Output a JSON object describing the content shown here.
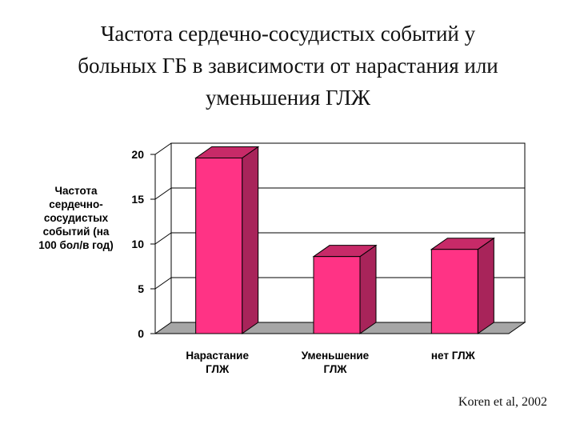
{
  "title_lines": [
    "Частота сердечно-сосудистых событий у",
    "больных ГБ в зависимости от нарастания или",
    "уменьшения ГЛЖ"
  ],
  "source": "Koren et al, 2002",
  "chart_data": {
    "type": "bar",
    "categories": [
      [
        "Нарастание",
        "ГЛЖ"
      ],
      [
        "Уменьшение",
        "ГЛЖ"
      ],
      [
        "нет ГЛЖ"
      ]
    ],
    "values": [
      19.6,
      8.6,
      9.4
    ],
    "ylabel_lines": [
      "Частота",
      "сердечно-",
      "сосудистых",
      "событий (на",
      "100 бол/в год)"
    ],
    "yticks": [
      "0",
      "5",
      "10",
      "15",
      "20"
    ],
    "ylim": [
      0,
      20
    ],
    "grid": true,
    "colors": {
      "bar_front": "#ff3385",
      "bar_side": "#a8245a",
      "bar_top": "#c72a68",
      "floor": "#a6a6a6",
      "grid": "#000000"
    }
  }
}
